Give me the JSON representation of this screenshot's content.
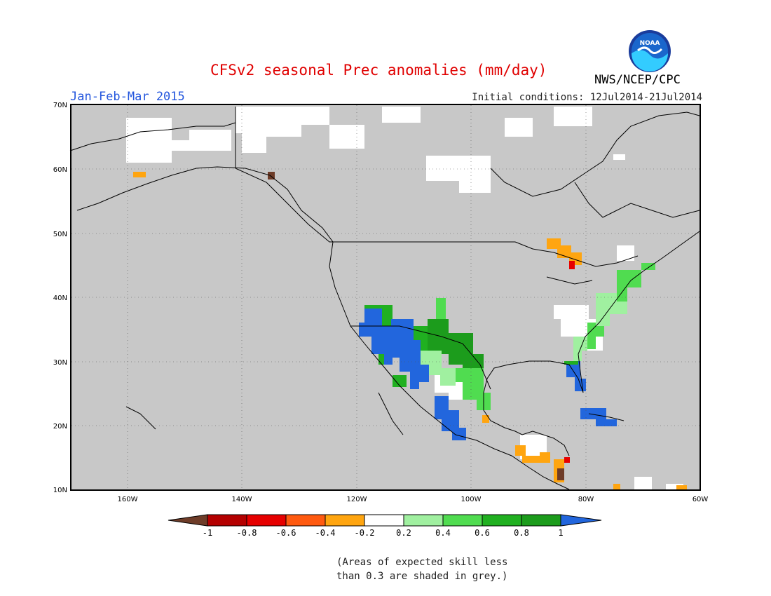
{
  "header": {
    "title": "CFSv2 seasonal Prec anomalies (mm/day)",
    "period": "Jan-Feb-Mar 2015",
    "initial_conditions": "Initial conditions: 12Jul2014-21Jul2014",
    "agency": "NWS/NCEP/CPC",
    "logo_text": "NOAA"
  },
  "map": {
    "lon_labels": [
      "160W",
      "140W",
      "120W",
      "100W",
      "80W",
      "60W"
    ],
    "lat_labels": [
      "70N",
      "60N",
      "50N",
      "40N",
      "30N",
      "20N",
      "10N"
    ],
    "colors": {
      "grey_mask": "#c8c8c8",
      "no_signal": "#ffffff",
      "wet_light": "#a0f0a0",
      "wet_mid": "#50dc50",
      "wet_strong": "#20b020",
      "wet_heavy": "#1c9c1c",
      "wet_extreme": "#2266dd",
      "dry_light": "#ffa510",
      "dry_mid": "#ff5a10",
      "dry_strong": "#d01010",
      "dry_extreme": "#7a4a3a"
    }
  },
  "colorbar": {
    "labels": [
      "-1",
      "-0.8",
      "-0.6",
      "-0.4",
      "-0.2",
      "0.2",
      "0.4",
      "0.6",
      "0.8",
      "1"
    ],
    "colors": [
      "#6e3c28",
      "#b40000",
      "#e60000",
      "#ff5a10",
      "#ffa510",
      "#ffffff",
      "#a0f0a0",
      "#50dc50",
      "#20b020",
      "#1c9c1c",
      "#2266dd"
    ]
  },
  "note": {
    "line1": "(Areas of expected skill less",
    "line2": "than 0.3 are shaded in grey.)"
  }
}
